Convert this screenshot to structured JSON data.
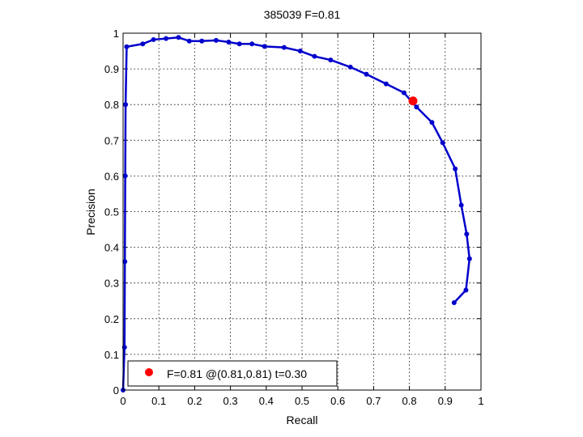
{
  "chart_data": {
    "type": "line",
    "title": "385039 F=0.81",
    "xlabel": "Recall",
    "ylabel": "Precision",
    "xlim": [
      0,
      1
    ],
    "ylim": [
      0,
      1
    ],
    "x_ticks": [
      "0",
      "0.1",
      "0.2",
      "0.3",
      "0.4",
      "0.5",
      "0.6",
      "0.7",
      "0.8",
      "0.9",
      "1"
    ],
    "y_ticks": [
      "0",
      "0.1",
      "0.2",
      "0.3",
      "0.4",
      "0.5",
      "0.6",
      "0.7",
      "0.8",
      "0.9",
      "1"
    ],
    "grid": true,
    "series": [
      {
        "color": "#0000cc",
        "points": [
          [
            0.0,
            0.0
          ],
          [
            0.004,
            0.12
          ],
          [
            0.005,
            0.36
          ],
          [
            0.006,
            0.6
          ],
          [
            0.007,
            0.8
          ],
          [
            0.01,
            0.962
          ],
          [
            0.055,
            0.97
          ],
          [
            0.085,
            0.982
          ],
          [
            0.12,
            0.985
          ],
          [
            0.155,
            0.988
          ],
          [
            0.185,
            0.978
          ],
          [
            0.22,
            0.978
          ],
          [
            0.26,
            0.98
          ],
          [
            0.295,
            0.975
          ],
          [
            0.325,
            0.97
          ],
          [
            0.36,
            0.97
          ],
          [
            0.395,
            0.963
          ],
          [
            0.45,
            0.96
          ],
          [
            0.495,
            0.95
          ],
          [
            0.535,
            0.935
          ],
          [
            0.58,
            0.925
          ],
          [
            0.635,
            0.905
          ],
          [
            0.68,
            0.885
          ],
          [
            0.735,
            0.858
          ],
          [
            0.785,
            0.833
          ],
          [
            0.82,
            0.793
          ],
          [
            0.863,
            0.75
          ],
          [
            0.893,
            0.693
          ],
          [
            0.928,
            0.62
          ],
          [
            0.945,
            0.518
          ],
          [
            0.96,
            0.437
          ],
          [
            0.968,
            0.368
          ],
          [
            0.958,
            0.28
          ],
          [
            0.925,
            0.245
          ]
        ]
      }
    ],
    "highlight_point": {
      "x": 0.81,
      "y": 0.81,
      "color": "#ff0000"
    },
    "legend": {
      "text": "F=0.81 @(0.81,0.81) t=0.30",
      "placement": "bottom-left"
    }
  }
}
